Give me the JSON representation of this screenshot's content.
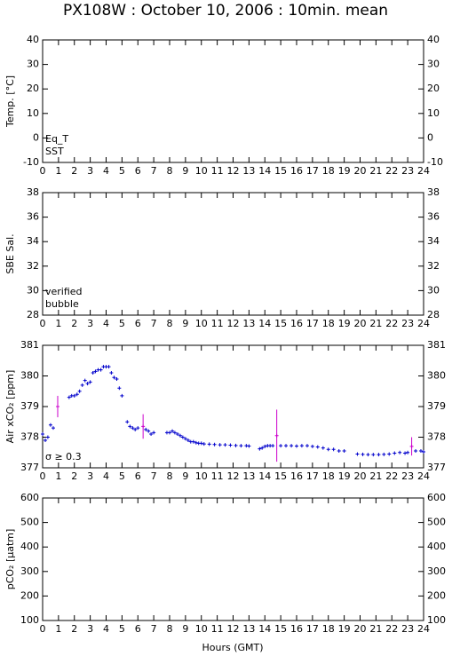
{
  "chart_data": [
    {
      "type": "scatter",
      "title": "PX108W : October 10, 2006 : 10min. mean",
      "ylabel": "Temp. [°C]",
      "xlim": [
        0,
        24
      ],
      "xticks": [
        0,
        1,
        2,
        3,
        4,
        5,
        6,
        7,
        8,
        9,
        10,
        11,
        12,
        13,
        14,
        15,
        16,
        17,
        18,
        19,
        20,
        21,
        22,
        23,
        24
      ],
      "ylim": [
        -10,
        40
      ],
      "yticks": [
        -10,
        0,
        10,
        20,
        30,
        40
      ],
      "series": [
        {
          "name": "Eq_T",
          "color": "#dd0000",
          "x": [],
          "values": []
        },
        {
          "name": "SST",
          "color": "#0000cc",
          "x": [],
          "values": []
        }
      ]
    },
    {
      "type": "scatter",
      "ylabel": "SBE Sal.",
      "xlim": [
        0,
        24
      ],
      "xticks": [
        0,
        1,
        2,
        3,
        4,
        5,
        6,
        7,
        8,
        9,
        10,
        11,
        12,
        13,
        14,
        15,
        16,
        17,
        18,
        19,
        20,
        21,
        22,
        23,
        24
      ],
      "ylim": [
        28,
        38
      ],
      "yticks": [
        28,
        30,
        32,
        34,
        36,
        38
      ],
      "series": [
        {
          "name": "verified",
          "color": "#0000cc",
          "x": [],
          "values": []
        },
        {
          "name": "bubble",
          "color": "#cc00cc",
          "x": [],
          "values": []
        }
      ]
    },
    {
      "type": "scatter",
      "ylabel": "Air xCO₂ [ppm]",
      "xlim": [
        0,
        24
      ],
      "xticks": [
        0,
        1,
        2,
        3,
        4,
        5,
        6,
        7,
        8,
        9,
        10,
        11,
        12,
        13,
        14,
        15,
        16,
        17,
        18,
        19,
        20,
        21,
        22,
        23,
        24
      ],
      "ylim": [
        377,
        381
      ],
      "yticks": [
        377,
        378,
        379,
        380,
        381
      ],
      "series": [
        {
          "color": "#0000cc",
          "x": [
            0.0,
            0.17,
            0.33,
            0.5,
            0.67,
            1.67,
            1.83,
            2.0,
            2.17,
            2.33,
            2.5,
            2.67,
            2.83,
            3.0,
            3.17,
            3.33,
            3.5,
            3.67,
            3.83,
            4.0,
            4.17,
            4.33,
            4.5,
            4.67,
            4.83,
            5.0,
            5.33,
            5.5,
            5.67,
            5.83,
            6.0,
            6.5,
            6.67,
            6.83,
            7.0,
            7.83,
            8.0,
            8.17,
            8.33,
            8.5,
            8.67,
            8.83,
            9.0,
            9.17,
            9.33,
            9.5,
            9.67,
            9.83,
            10.0,
            10.17,
            10.5,
            10.83,
            11.17,
            11.5,
            11.83,
            12.17,
            12.5,
            12.83,
            13.0,
            13.67,
            13.83,
            14.0,
            14.17,
            14.33,
            14.5,
            15.0,
            15.33,
            15.67,
            16.0,
            16.33,
            16.67,
            17.0,
            17.33,
            17.67,
            18.0,
            18.33,
            18.67,
            19.0,
            19.83,
            20.17,
            20.5,
            20.83,
            21.17,
            21.5,
            21.83,
            22.17,
            22.5,
            22.83,
            23.0,
            23.5,
            23.83,
            24.0
          ],
          "values": [
            378.1,
            377.9,
            378.0,
            378.4,
            378.3,
            379.3,
            379.35,
            379.35,
            379.4,
            379.5,
            379.7,
            379.85,
            379.75,
            379.8,
            380.1,
            380.15,
            380.2,
            380.2,
            380.3,
            380.3,
            380.3,
            380.1,
            379.95,
            379.9,
            379.6,
            379.35,
            378.5,
            378.35,
            378.3,
            378.25,
            378.3,
            378.25,
            378.2,
            378.1,
            378.15,
            378.15,
            378.15,
            378.2,
            378.15,
            378.1,
            378.05,
            378.0,
            377.95,
            377.9,
            377.85,
            377.85,
            377.82,
            377.8,
            377.8,
            377.78,
            377.77,
            377.76,
            377.75,
            377.75,
            377.74,
            377.73,
            377.72,
            377.72,
            377.71,
            377.62,
            377.65,
            377.7,
            377.72,
            377.72,
            377.72,
            377.72,
            377.72,
            377.72,
            377.71,
            377.72,
            377.72,
            377.7,
            377.68,
            377.65,
            377.6,
            377.6,
            377.55,
            377.55,
            377.45,
            377.44,
            377.43,
            377.43,
            377.43,
            377.44,
            377.45,
            377.48,
            377.5,
            377.48,
            377.5,
            377.55,
            377.55,
            377.52
          ]
        },
        {
          "name": "σ ≥ 0.3",
          "color": "#cc00cc",
          "x": [
            0.95,
            6.33,
            14.75,
            23.25
          ],
          "values": [
            379.0,
            378.35,
            378.05,
            377.7
          ],
          "errors": [
            0.35,
            0.4,
            0.85,
            0.3
          ]
        }
      ]
    },
    {
      "type": "scatter",
      "ylabel": "pCO₂ [µatm]",
      "xlabel": "Hours (GMT)",
      "xlim": [
        0,
        24
      ],
      "xticks": [
        0,
        1,
        2,
        3,
        4,
        5,
        6,
        7,
        8,
        9,
        10,
        11,
        12,
        13,
        14,
        15,
        16,
        17,
        18,
        19,
        20,
        21,
        22,
        23,
        24
      ],
      "ylim": [
        100,
        600
      ],
      "yticks": [
        100,
        200,
        300,
        400,
        500,
        600
      ],
      "series": []
    }
  ]
}
